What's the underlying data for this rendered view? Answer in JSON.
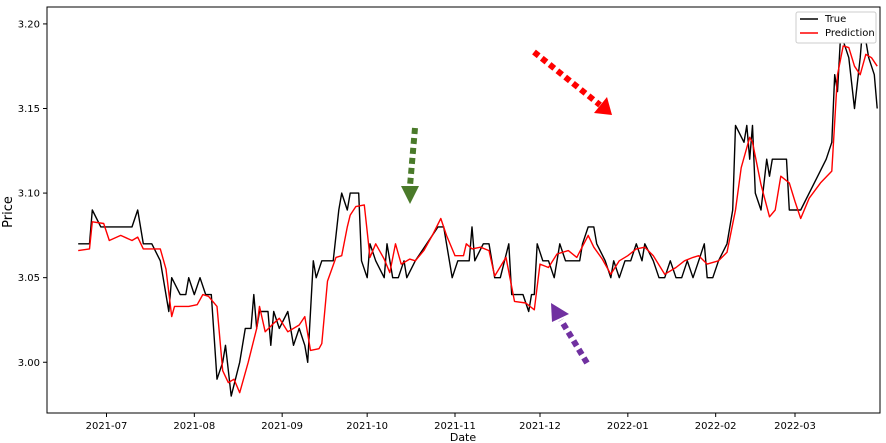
{
  "chart_data": {
    "type": "line",
    "title": "",
    "xlabel": "Date",
    "ylabel": "Price",
    "xlim": [
      "2021-06-10",
      "2022-03-31"
    ],
    "ylim": [
      2.97,
      3.21
    ],
    "grid": false,
    "legend_position": "top-right",
    "x_tick_labels": [
      "2021-07",
      "2021-08",
      "2021-09",
      "2021-10",
      "2021-11",
      "2021-12",
      "2022-01",
      "2022-02",
      "2022-03"
    ],
    "y_tick_labels": [
      "3.00",
      "3.05",
      "3.10",
      "3.15",
      "3.20"
    ],
    "series": [
      {
        "name": "True",
        "color": "#000000",
        "points": [
          [
            "2021-06-21",
            3.07
          ],
          [
            "2021-06-23",
            3.07
          ],
          [
            "2021-06-25",
            3.07
          ],
          [
            "2021-06-26",
            3.09
          ],
          [
            "2021-06-29",
            3.08
          ],
          [
            "2021-07-01",
            3.08
          ],
          [
            "2021-07-05",
            3.08
          ],
          [
            "2021-07-10",
            3.08
          ],
          [
            "2021-07-12",
            3.09
          ],
          [
            "2021-07-14",
            3.07
          ],
          [
            "2021-07-17",
            3.07
          ],
          [
            "2021-07-20",
            3.06
          ],
          [
            "2021-07-23",
            3.03
          ],
          [
            "2021-07-24",
            3.05
          ],
          [
            "2021-07-27",
            3.04
          ],
          [
            "2021-07-29",
            3.04
          ],
          [
            "2021-07-30",
            3.05
          ],
          [
            "2021-08-01",
            3.04
          ],
          [
            "2021-08-03",
            3.05
          ],
          [
            "2021-08-05",
            3.04
          ],
          [
            "2021-08-07",
            3.04
          ],
          [
            "2021-08-09",
            2.99
          ],
          [
            "2021-08-11",
            3.0
          ],
          [
            "2021-08-12",
            3.01
          ],
          [
            "2021-08-14",
            2.98
          ],
          [
            "2021-08-17",
            3.0
          ],
          [
            "2021-08-19",
            3.02
          ],
          [
            "2021-08-21",
            3.02
          ],
          [
            "2021-08-22",
            3.04
          ],
          [
            "2021-08-23",
            3.02
          ],
          [
            "2021-08-24",
            3.03
          ],
          [
            "2021-08-27",
            3.03
          ],
          [
            "2021-08-28",
            3.01
          ],
          [
            "2021-08-29",
            3.03
          ],
          [
            "2021-08-31",
            3.02
          ],
          [
            "2021-09-03",
            3.03
          ],
          [
            "2021-09-05",
            3.01
          ],
          [
            "2021-09-07",
            3.02
          ],
          [
            "2021-09-09",
            3.01
          ],
          [
            "2021-09-10",
            3.0
          ],
          [
            "2021-09-12",
            3.06
          ],
          [
            "2021-09-13",
            3.05
          ],
          [
            "2021-09-15",
            3.06
          ],
          [
            "2021-09-19",
            3.06
          ],
          [
            "2021-09-21",
            3.09
          ],
          [
            "2021-09-22",
            3.1
          ],
          [
            "2021-09-24",
            3.09
          ],
          [
            "2021-09-25",
            3.1
          ],
          [
            "2021-09-28",
            3.1
          ],
          [
            "2021-09-29",
            3.06
          ],
          [
            "2021-10-01",
            3.05
          ],
          [
            "2021-10-02",
            3.07
          ],
          [
            "2021-10-04",
            3.06
          ],
          [
            "2021-10-07",
            3.05
          ],
          [
            "2021-10-08",
            3.07
          ],
          [
            "2021-10-10",
            3.05
          ],
          [
            "2021-10-12",
            3.05
          ],
          [
            "2021-10-14",
            3.06
          ],
          [
            "2021-10-15",
            3.05
          ],
          [
            "2021-10-18",
            3.06
          ],
          [
            "2021-10-22",
            3.07
          ],
          [
            "2021-10-26",
            3.08
          ],
          [
            "2021-10-28",
            3.08
          ],
          [
            "2021-10-31",
            3.05
          ],
          [
            "2021-11-02",
            3.06
          ],
          [
            "2021-11-04",
            3.06
          ],
          [
            "2021-11-06",
            3.06
          ],
          [
            "2021-11-07",
            3.08
          ],
          [
            "2021-11-08",
            3.06
          ],
          [
            "2021-11-11",
            3.07
          ],
          [
            "2021-11-13",
            3.07
          ],
          [
            "2021-11-15",
            3.05
          ],
          [
            "2021-11-17",
            3.05
          ],
          [
            "2021-11-20",
            3.07
          ],
          [
            "2021-11-21",
            3.04
          ],
          [
            "2021-11-23",
            3.04
          ],
          [
            "2021-11-25",
            3.04
          ],
          [
            "2021-11-27",
            3.03
          ],
          [
            "2021-11-28",
            3.04
          ],
          [
            "2021-11-29",
            3.04
          ],
          [
            "2021-11-30",
            3.07
          ],
          [
            "2021-12-02",
            3.06
          ],
          [
            "2021-12-04",
            3.06
          ],
          [
            "2021-12-06",
            3.05
          ],
          [
            "2021-12-08",
            3.07
          ],
          [
            "2021-12-10",
            3.06
          ],
          [
            "2021-12-13",
            3.06
          ],
          [
            "2021-12-15",
            3.06
          ],
          [
            "2021-12-16",
            3.07
          ],
          [
            "2021-12-18",
            3.08
          ],
          [
            "2021-12-20",
            3.08
          ],
          [
            "2021-12-21",
            3.07
          ],
          [
            "2021-12-24",
            3.06
          ],
          [
            "2021-12-26",
            3.05
          ],
          [
            "2021-12-27",
            3.06
          ],
          [
            "2021-12-29",
            3.05
          ],
          [
            "2021-12-31",
            3.06
          ],
          [
            "2022-01-02",
            3.06
          ],
          [
            "2022-01-04",
            3.07
          ],
          [
            "2022-01-06",
            3.06
          ],
          [
            "2022-01-07",
            3.07
          ],
          [
            "2022-01-10",
            3.06
          ],
          [
            "2022-01-12",
            3.05
          ],
          [
            "2022-01-14",
            3.05
          ],
          [
            "2022-01-16",
            3.06
          ],
          [
            "2022-01-18",
            3.05
          ],
          [
            "2022-01-20",
            3.05
          ],
          [
            "2022-01-22",
            3.06
          ],
          [
            "2022-01-24",
            3.05
          ],
          [
            "2022-01-26",
            3.06
          ],
          [
            "2022-01-28",
            3.07
          ],
          [
            "2022-01-29",
            3.05
          ],
          [
            "2022-01-31",
            3.05
          ],
          [
            "2022-02-02",
            3.06
          ],
          [
            "2022-02-05",
            3.07
          ],
          [
            "2022-02-07",
            3.09
          ],
          [
            "2022-02-08",
            3.14
          ],
          [
            "2022-02-11",
            3.13
          ],
          [
            "2022-02-12",
            3.14
          ],
          [
            "2022-02-13",
            3.12
          ],
          [
            "2022-02-14",
            3.14
          ],
          [
            "2022-02-15",
            3.1
          ],
          [
            "2022-02-17",
            3.09
          ],
          [
            "2022-02-19",
            3.12
          ],
          [
            "2022-02-20",
            3.11
          ],
          [
            "2022-02-21",
            3.12
          ],
          [
            "2022-02-26",
            3.12
          ],
          [
            "2022-02-27",
            3.09
          ],
          [
            "2022-03-01",
            3.09
          ],
          [
            "2022-03-03",
            3.09
          ],
          [
            "2022-03-06",
            3.1
          ],
          [
            "2022-03-09",
            3.11
          ],
          [
            "2022-03-12",
            3.12
          ],
          [
            "2022-03-14",
            3.13
          ],
          [
            "2022-03-15",
            3.17
          ],
          [
            "2022-03-16",
            3.16
          ],
          [
            "2022-03-17",
            3.19
          ],
          [
            "2022-03-18",
            3.19
          ],
          [
            "2022-03-20",
            3.18
          ],
          [
            "2022-03-22",
            3.15
          ],
          [
            "2022-03-24",
            3.18
          ],
          [
            "2022-03-25",
            3.2
          ],
          [
            "2022-03-27",
            3.18
          ],
          [
            "2022-03-29",
            3.17
          ],
          [
            "2022-03-30",
            3.15
          ]
        ]
      },
      {
        "name": "Prediction",
        "color": "#ff0000",
        "points": [
          [
            "2021-06-21",
            3.066
          ],
          [
            "2021-06-25",
            3.067
          ],
          [
            "2021-06-26",
            3.083
          ],
          [
            "2021-06-30",
            3.082
          ],
          [
            "2021-07-02",
            3.072
          ],
          [
            "2021-07-06",
            3.075
          ],
          [
            "2021-07-10",
            3.072
          ],
          [
            "2021-07-12",
            3.074
          ],
          [
            "2021-07-14",
            3.067
          ],
          [
            "2021-07-20",
            3.067
          ],
          [
            "2021-07-22",
            3.055
          ],
          [
            "2021-07-24",
            3.027
          ],
          [
            "2021-07-25",
            3.033
          ],
          [
            "2021-07-30",
            3.033
          ],
          [
            "2021-08-02",
            3.034
          ],
          [
            "2021-08-04",
            3.04
          ],
          [
            "2021-08-06",
            3.039
          ],
          [
            "2021-08-09",
            3.033
          ],
          [
            "2021-08-11",
            2.995
          ],
          [
            "2021-08-13",
            2.988
          ],
          [
            "2021-08-15",
            2.99
          ],
          [
            "2021-08-17",
            2.982
          ],
          [
            "2021-08-20",
            3.0
          ],
          [
            "2021-08-23",
            3.02
          ],
          [
            "2021-08-24",
            3.033
          ],
          [
            "2021-08-26",
            3.018
          ],
          [
            "2021-08-29",
            3.023
          ],
          [
            "2021-08-31",
            3.026
          ],
          [
            "2021-09-03",
            3.018
          ],
          [
            "2021-09-07",
            3.022
          ],
          [
            "2021-09-09",
            3.027
          ],
          [
            "2021-09-11",
            3.007
          ],
          [
            "2021-09-14",
            3.008
          ],
          [
            "2021-09-15",
            3.011
          ],
          [
            "2021-09-17",
            3.048
          ],
          [
            "2021-09-20",
            3.062
          ],
          [
            "2021-09-22",
            3.063
          ],
          [
            "2021-09-24",
            3.08
          ],
          [
            "2021-09-25",
            3.087
          ],
          [
            "2021-09-27",
            3.092
          ],
          [
            "2021-09-30",
            3.093
          ],
          [
            "2021-10-02",
            3.062
          ],
          [
            "2021-10-04",
            3.07
          ],
          [
            "2021-10-07",
            3.061
          ],
          [
            "2021-10-09",
            3.053
          ],
          [
            "2021-10-11",
            3.07
          ],
          [
            "2021-10-13",
            3.058
          ],
          [
            "2021-10-16",
            3.061
          ],
          [
            "2021-10-18",
            3.06
          ],
          [
            "2021-10-21",
            3.066
          ],
          [
            "2021-10-24",
            3.075
          ],
          [
            "2021-10-27",
            3.085
          ],
          [
            "2021-10-29",
            3.075
          ],
          [
            "2021-11-01",
            3.063
          ],
          [
            "2021-11-04",
            3.063
          ],
          [
            "2021-11-05",
            3.07
          ],
          [
            "2021-11-07",
            3.067
          ],
          [
            "2021-11-10",
            3.068
          ],
          [
            "2021-11-13",
            3.066
          ],
          [
            "2021-11-15",
            3.051
          ],
          [
            "2021-11-19",
            3.062
          ],
          [
            "2021-11-22",
            3.036
          ],
          [
            "2021-11-26",
            3.035
          ],
          [
            "2021-11-29",
            3.031
          ],
          [
            "2021-12-01",
            3.058
          ],
          [
            "2021-12-04",
            3.056
          ],
          [
            "2021-12-07",
            3.064
          ],
          [
            "2021-12-11",
            3.066
          ],
          [
            "2021-12-14",
            3.062
          ],
          [
            "2021-12-18",
            3.075
          ],
          [
            "2021-12-20",
            3.068
          ],
          [
            "2021-12-23",
            3.061
          ],
          [
            "2021-12-26",
            3.052
          ],
          [
            "2021-12-29",
            3.06
          ],
          [
            "2022-01-01",
            3.063
          ],
          [
            "2022-01-04",
            3.067
          ],
          [
            "2022-01-07",
            3.068
          ],
          [
            "2022-01-10",
            3.063
          ],
          [
            "2022-01-14",
            3.052
          ],
          [
            "2022-01-18",
            3.056
          ],
          [
            "2022-01-21",
            3.06
          ],
          [
            "2022-01-24",
            3.062
          ],
          [
            "2022-01-26",
            3.063
          ],
          [
            "2022-01-29",
            3.058
          ],
          [
            "2022-02-02",
            3.06
          ],
          [
            "2022-02-05",
            3.065
          ],
          [
            "2022-02-08",
            3.09
          ],
          [
            "2022-02-10",
            3.115
          ],
          [
            "2022-02-13",
            3.133
          ],
          [
            "2022-02-14",
            3.13
          ],
          [
            "2022-02-17",
            3.105
          ],
          [
            "2022-02-20",
            3.086
          ],
          [
            "2022-02-22",
            3.09
          ],
          [
            "2022-02-24",
            3.11
          ],
          [
            "2022-02-27",
            3.106
          ],
          [
            "2022-03-01",
            3.095
          ],
          [
            "2022-03-03",
            3.085
          ],
          [
            "2022-03-06",
            3.097
          ],
          [
            "2022-03-10",
            3.106
          ],
          [
            "2022-03-14",
            3.113
          ],
          [
            "2022-03-16",
            3.17
          ],
          [
            "2022-03-18",
            3.187
          ],
          [
            "2022-03-20",
            3.186
          ],
          [
            "2022-03-22",
            3.175
          ],
          [
            "2022-03-24",
            3.17
          ],
          [
            "2022-03-26",
            3.182
          ],
          [
            "2022-03-28",
            3.18
          ],
          [
            "2022-03-30",
            3.175
          ]
        ]
      }
    ]
  },
  "annotations": [
    {
      "kind": "dotted-arrow",
      "color": "#ff0000"
    },
    {
      "kind": "dotted-arrow",
      "color": "#4a7a2a"
    },
    {
      "kind": "dotted-arrow",
      "color": "#7030a0"
    }
  ]
}
